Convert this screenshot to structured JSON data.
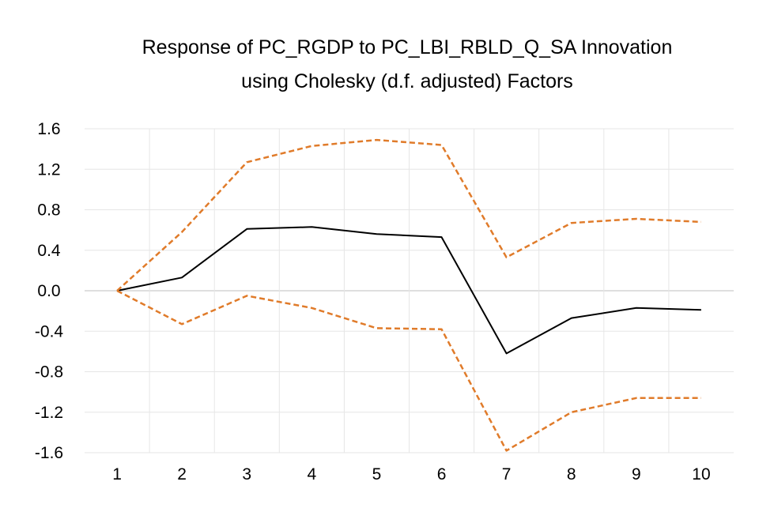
{
  "chart_data": {
    "type": "line",
    "title": "Response of PC_RGDP to PC_LBI_RBLD_Q_SA Innovation",
    "subtitle": "using Cholesky (d.f. adjusted) Factors",
    "xlabel": "",
    "ylabel": "",
    "categories": [
      "1",
      "2",
      "3",
      "4",
      "5",
      "6",
      "7",
      "8",
      "9",
      "10"
    ],
    "ylim": [
      -1.6,
      1.6
    ],
    "yticks": [
      "1.6",
      "1.2",
      "0.8",
      "0.4",
      "0.0",
      "-0.4",
      "-0.8",
      "-1.2",
      "-1.6"
    ],
    "grid": true,
    "legend": "none",
    "series": [
      {
        "values": [
          0.0,
          0.13,
          0.61,
          0.63,
          0.56,
          0.53,
          -0.62,
          -0.27,
          -0.17,
          -0.19
        ],
        "color": "#000000",
        "style": "solid"
      },
      {
        "values": [
          0.0,
          0.58,
          1.27,
          1.43,
          1.49,
          1.44,
          0.33,
          0.67,
          0.71,
          0.68
        ],
        "color": "#E07B2A",
        "style": "dashed"
      },
      {
        "values": [
          0.0,
          -0.33,
          -0.05,
          -0.17,
          -0.37,
          -0.38,
          -1.58,
          -1.2,
          -1.06,
          -1.06
        ],
        "color": "#E07B2A",
        "style": "dashed"
      }
    ]
  }
}
